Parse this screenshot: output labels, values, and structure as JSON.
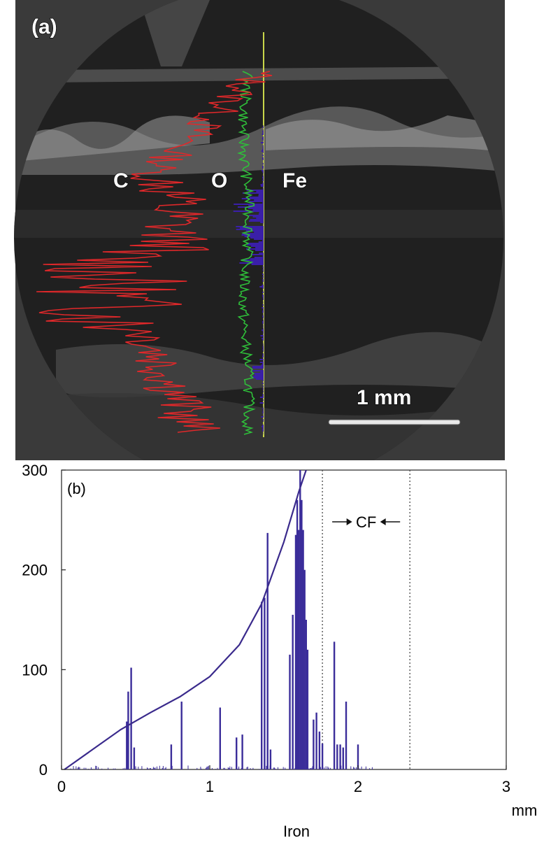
{
  "figure": {
    "panel_a_label": "(a)",
    "panel_b_label": "(b)",
    "element_labels": [
      "C",
      "O",
      "Fe"
    ],
    "scale_bar_label": "1 mm",
    "colors": {
      "carbon": "#e0282a",
      "oxygen": "#2fbf3a",
      "iron": "#3a1fa8",
      "fe_trace_line": "#c8d64a",
      "plot_line": "#3a2a8c",
      "plot_bars": "#3b2d9a",
      "background_a": "#202020"
    }
  },
  "chart_data": {
    "type": "bar",
    "title": "",
    "xlabel": "Iron",
    "x_unit": "mm",
    "ylabel": "",
    "xlim": [
      0,
      3
    ],
    "ylim": [
      0,
      300
    ],
    "x_ticks": [
      "0",
      "1",
      "2",
      "3"
    ],
    "y_ticks": [
      "0",
      "100",
      "200",
      "300"
    ],
    "panel_label": "(b)",
    "region": {
      "label": "CF",
      "x_start": 1.76,
      "x_end": 2.35
    },
    "series": [
      {
        "type": "bar",
        "x": [
          0.44,
          0.45,
          0.47,
          0.49,
          0.74,
          0.81,
          1.07,
          1.18,
          1.22,
          1.35,
          1.37,
          1.39,
          1.41,
          1.54,
          1.56,
          1.58,
          1.59,
          1.6,
          1.61,
          1.62,
          1.63,
          1.64,
          1.65,
          1.66,
          1.7,
          1.72,
          1.74,
          1.76,
          1.84,
          1.86,
          1.88,
          1.9,
          1.92,
          2.0
        ],
        "values": [
          48,
          78,
          102,
          22,
          25,
          68,
          62,
          32,
          35,
          168,
          172,
          237,
          20,
          115,
          155,
          235,
          270,
          240,
          300,
          270,
          240,
          200,
          150,
          120,
          50,
          57,
          38,
          26,
          128,
          25,
          25,
          22,
          68,
          25
        ]
      },
      {
        "type": "line",
        "x": [
          0.02,
          0.2,
          0.4,
          0.6,
          0.8,
          1.0,
          1.2,
          1.35,
          1.5,
          1.6,
          1.65
        ],
        "values": [
          0,
          19,
          40,
          57,
          73,
          93,
          125,
          166,
          228,
          278,
          305
        ]
      }
    ]
  }
}
